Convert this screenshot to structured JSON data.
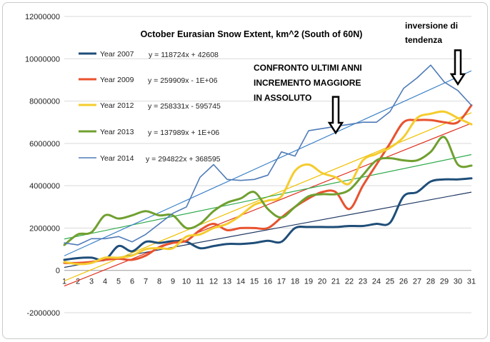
{
  "chart_data": {
    "type": "line",
    "title": "October Eurasian Snow Extent, km^2 (South of 60N)",
    "x": [
      1,
      2,
      3,
      4,
      5,
      6,
      7,
      8,
      9,
      10,
      11,
      12,
      13,
      14,
      15,
      16,
      17,
      18,
      19,
      20,
      21,
      22,
      23,
      24,
      25,
      26,
      27,
      28,
      29,
      30,
      31
    ],
    "ylim": [
      -2000000,
      12000000
    ],
    "yticks": [
      -2000000,
      0,
      2000000,
      4000000,
      6000000,
      8000000,
      10000000,
      12000000
    ],
    "grid": true,
    "legend_position": "top-left",
    "series": [
      {
        "name": "Year 2007",
        "color": "#1F4E79",
        "width": 3,
        "smooth": true,
        "trend_equation": "y = 118724x + 42608",
        "trend_color": "#1F3864",
        "values": [
          500000,
          580000,
          600000,
          500000,
          1150000,
          900000,
          1350000,
          1300000,
          1380000,
          1350000,
          1050000,
          1150000,
          1250000,
          1250000,
          1300000,
          1400000,
          1350000,
          2000000,
          2050000,
          2050000,
          2050000,
          2100000,
          2100000,
          2200000,
          2250000,
          3500000,
          3700000,
          4200000,
          4300000,
          4300000,
          4350000
        ]
      },
      {
        "name": "Year 2009",
        "color": "#E8522E",
        "width": 3,
        "smooth": true,
        "trend_equation": "y = 259909x - 1E+06",
        "trend_color": "#E0301E",
        "values": [
          350000,
          350000,
          400000,
          500000,
          550000,
          500000,
          700000,
          1100000,
          1300000,
          1400000,
          1900000,
          2200000,
          1900000,
          2000000,
          2000000,
          2000000,
          2500000,
          3000000,
          3400000,
          3700000,
          3700000,
          2900000,
          4000000,
          5000000,
          6000000,
          7000000,
          7100000,
          7100000,
          7000000,
          7000000,
          7800000
        ]
      },
      {
        "name": "Year 2012",
        "color": "#F5CC2E",
        "width": 3,
        "smooth": true,
        "trend_equation": "y = 258331x - 595745",
        "trend_color": "#F0C000",
        "values": [
          400000,
          300000,
          350000,
          600000,
          600000,
          700000,
          1000000,
          1050000,
          1050000,
          1600000,
          1700000,
          2000000,
          2200000,
          2600000,
          3100000,
          3300000,
          3500000,
          4700000,
          5000000,
          4600000,
          4400000,
          4100000,
          5200000,
          5500000,
          5800000,
          6300000,
          7200000,
          7400000,
          7500000,
          7200000,
          6900000
        ]
      },
      {
        "name": "Year 2013",
        "color": "#70A030",
        "width": 3,
        "smooth": true,
        "trend_equation": "y = 137989x + 1E+06",
        "trend_color": "#2EAA4A",
        "values": [
          1200000,
          1700000,
          1800000,
          2600000,
          2450000,
          2600000,
          2800000,
          2600000,
          2600000,
          2000000,
          2200000,
          2800000,
          3200000,
          3400000,
          3700000,
          2900000,
          2500000,
          3000000,
          3500000,
          3600000,
          3600000,
          3800000,
          4500000,
          5200000,
          5300000,
          5200000,
          5200000,
          5600000,
          6300000,
          5000000,
          4950000
        ]
      },
      {
        "name": "Year 2014",
        "color": "#4F7BB8",
        "width": 1.6,
        "smooth": false,
        "trend_equation": "y = 294822x + 368595",
        "trend_color": "#3C82C8",
        "values": [
          1300000,
          1200000,
          1500000,
          1500000,
          1600000,
          1350000,
          1700000,
          2200000,
          2700000,
          3000000,
          4400000,
          5000000,
          4300000,
          4250000,
          4300000,
          4500000,
          5600000,
          5400000,
          6600000,
          6700000,
          6800000,
          6900000,
          7000000,
          7000000,
          7500000,
          8600000,
          9100000,
          9700000,
          8900000,
          8500000,
          7800000
        ]
      }
    ],
    "annotations": [
      {
        "text": [
          "CONFRONTO ULTIMI ANNI",
          "INCREMENTO MAGGIORE",
          "IN ASSOLUTO"
        ],
        "arrow_x": 21,
        "arrow_from_y": 8200000,
        "arrow_to_y": 6500000
      },
      {
        "text": [
          "inversione di",
          "tendenza"
        ],
        "arrow_x": 30,
        "arrow_from_y": 10400000,
        "arrow_to_y": 8800000
      }
    ]
  }
}
